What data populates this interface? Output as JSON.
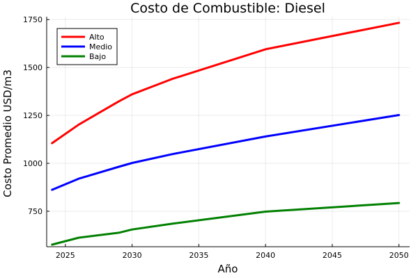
{
  "chart_data": {
    "type": "line",
    "title": "Costo de Combustible: Diesel",
    "xlabel": "Año",
    "ylabel": "Costo Promedio USD/m3",
    "xlim": [
      2023.6,
      2050.8
    ],
    "ylim": [
      565,
      1765
    ],
    "x_ticks": [
      2025,
      2030,
      2035,
      2040,
      2045,
      2050
    ],
    "y_ticks": [
      750,
      1000,
      1250,
      1500,
      1750
    ],
    "grid": true,
    "legend_position": "top-left",
    "series": [
      {
        "name": "Alto",
        "color": "#ff0000",
        "x": [
          2024,
          2026,
          2029,
          2030,
          2033,
          2040,
          2050
        ],
        "values": [
          1105,
          1202,
          1323,
          1360,
          1440,
          1595,
          1733
        ]
      },
      {
        "name": "Medio",
        "color": "#0000ff",
        "x": [
          2024,
          2026,
          2029,
          2030,
          2033,
          2040,
          2050
        ],
        "values": [
          862,
          920,
          982,
          1002,
          1048,
          1140,
          1252
        ]
      },
      {
        "name": "Bajo",
        "color": "#008000",
        "x": [
          2024,
          2026,
          2029,
          2030,
          2033,
          2040,
          2050
        ],
        "values": [
          576,
          612,
          638,
          655,
          685,
          748,
          793
        ]
      }
    ]
  }
}
